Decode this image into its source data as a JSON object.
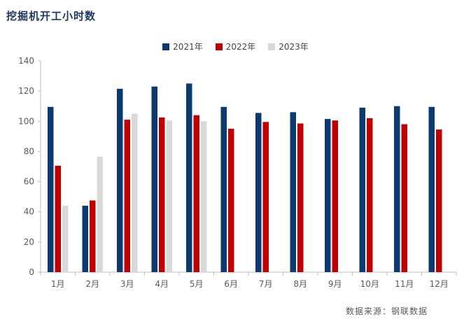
{
  "title": "挖掘机开工小时数",
  "source": "数据来源：钢联数据",
  "colors": {
    "s2021": "#0b3a70",
    "s2022": "#c00000",
    "s2023": "#d9d9d9"
  },
  "chart_data": {
    "type": "bar",
    "title": "挖掘机开工小时数",
    "xlabel": "",
    "ylabel": "",
    "ylim": [
      0,
      140
    ],
    "yticks": [
      0,
      20,
      40,
      60,
      80,
      100,
      120,
      140
    ],
    "legend_position": "top-center",
    "grid": false,
    "categories": [
      "1月",
      "2月",
      "3月",
      "4月",
      "5月",
      "6月",
      "7月",
      "8月",
      "9月",
      "10月",
      "11月",
      "12月"
    ],
    "series": [
      {
        "name": "2021年",
        "values": [
          109.5,
          44,
          121.5,
          123,
          125,
          109.5,
          105.5,
          106,
          101.5,
          109,
          110,
          109.5
        ]
      },
      {
        "name": "2022年",
        "values": [
          70.5,
          47.5,
          101,
          102.5,
          104,
          95,
          99.5,
          98.5,
          100.5,
          102,
          98,
          94.5
        ]
      },
      {
        "name": "2023年",
        "values": [
          44,
          76.5,
          105,
          100.5,
          100,
          null,
          null,
          null,
          null,
          null,
          null,
          null
        ]
      }
    ]
  }
}
